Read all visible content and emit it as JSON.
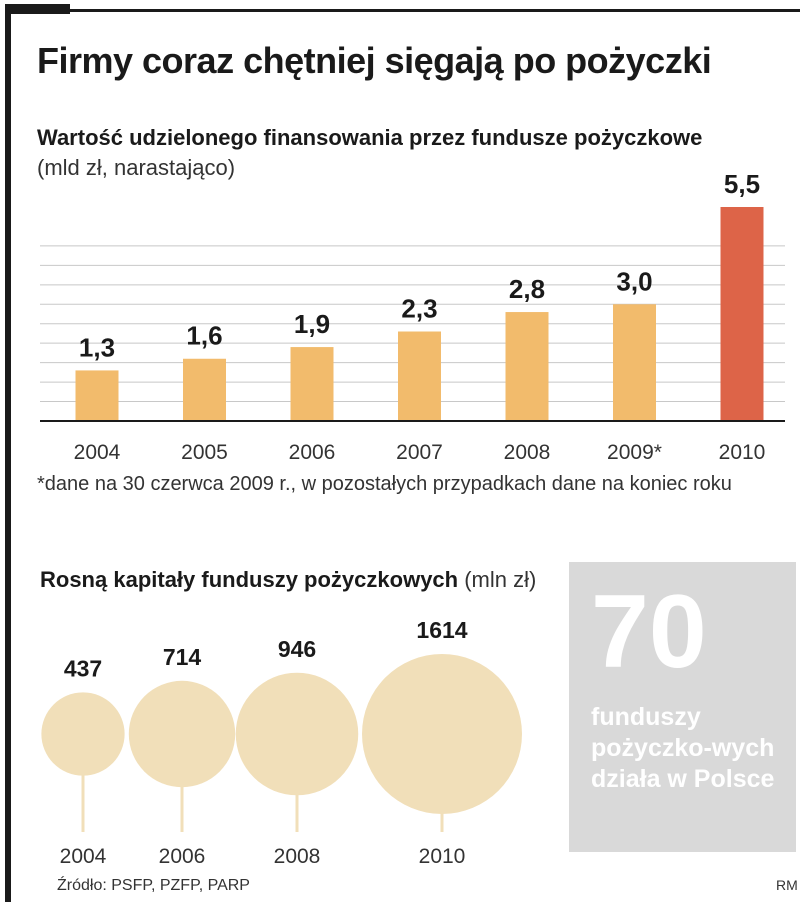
{
  "headline": "Firmy coraz chętniej sięgają po pożyczki",
  "subtitle": "Wartość udzielonego finansowania przez fundusze pożyczkowe",
  "unit": "(mld zł, narastająco)",
  "footnote": "*dane na 30 czerwca 2009 r., w pozostałych przypadkach dane na koniec roku",
  "capital": {
    "title": "Rosną kapitały funduszy pożyczkowych",
    "unit": "(mln zł)"
  },
  "box": {
    "number": "70",
    "text": "funduszy pożyczko-wych działa w Polsce"
  },
  "source": "Źródło: PSFP, PZFP, PARP",
  "initials": "RM",
  "colors": {
    "bar": "#f2bb6c",
    "highlight": "#dd6448",
    "bubble": "#f1dfb9",
    "box": "#d9d9d9"
  },
  "chart_data": [
    {
      "type": "bar",
      "title": "Wartość udzielonego finansowania przez fundusze pożyczkowe",
      "ylabel": "mld zł, narastająco",
      "categories": [
        "2004",
        "2005",
        "2006",
        "2007",
        "2008",
        "2009*",
        "2010"
      ],
      "values": [
        1.3,
        1.6,
        1.9,
        2.3,
        2.8,
        3.0,
        5.5
      ],
      "value_labels": [
        "1,3",
        "1,6",
        "1,9",
        "2,3",
        "2,8",
        "3,0",
        "5,5"
      ],
      "highlight_index": 6,
      "ylim": [
        0,
        5.5
      ],
      "grid": true
    },
    {
      "type": "bubble",
      "title": "Rosną kapitały funduszy pożyczkowych",
      "ylabel": "mln zł",
      "categories": [
        "2004",
        "2006",
        "2008",
        "2010"
      ],
      "values": [
        437,
        714,
        946,
        1614
      ],
      "value_labels": [
        "437",
        "714",
        "946",
        "1614"
      ]
    }
  ]
}
